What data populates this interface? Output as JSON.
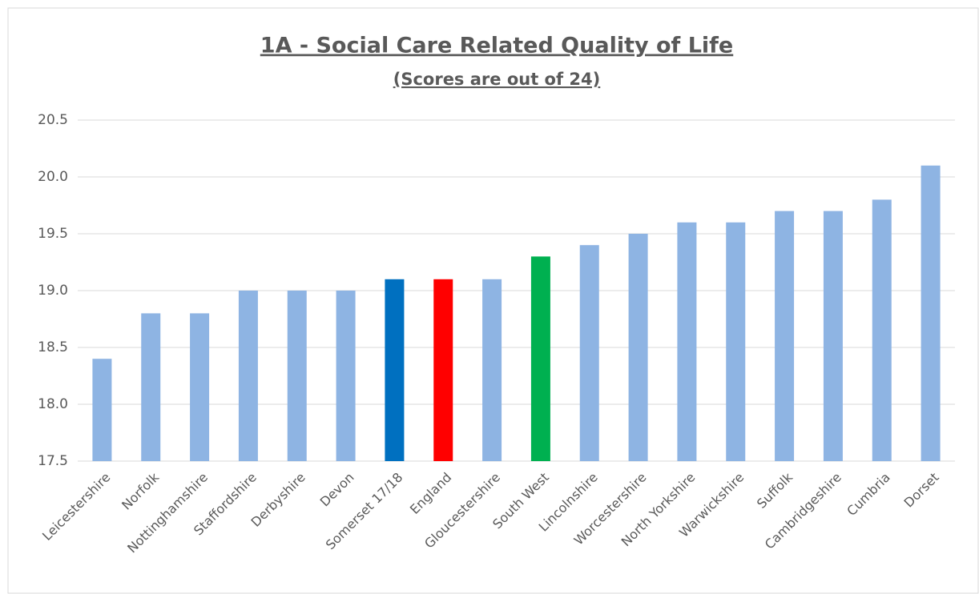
{
  "chart_data": {
    "type": "bar",
    "title": "1A - Social Care Related Quality of Life",
    "subtitle": "(Scores are out of 24)",
    "categories": [
      "Leicestershire",
      "Norfolk",
      "Nottinghamshire",
      "Staffordshire",
      "Derbyshire",
      "Devon",
      "Somerset 17/18",
      "England",
      "Gloucestershire",
      "South West",
      "Lincolnshire",
      "Worcestershire",
      "North Yorkshire",
      "Warwickshire",
      "Suffolk",
      "Cambridgeshire",
      "Cumbria",
      "Dorset"
    ],
    "values": [
      18.4,
      18.8,
      18.8,
      19.0,
      19.0,
      19.0,
      19.1,
      19.1,
      19.1,
      19.3,
      19.4,
      19.5,
      19.6,
      19.6,
      19.7,
      19.7,
      19.8,
      20.1
    ],
    "colors": [
      "#8eb4e3",
      "#8eb4e3",
      "#8eb4e3",
      "#8eb4e3",
      "#8eb4e3",
      "#8eb4e3",
      "#0070c0",
      "#ff0000",
      "#8eb4e3",
      "#00b050",
      "#8eb4e3",
      "#8eb4e3",
      "#8eb4e3",
      "#8eb4e3",
      "#8eb4e3",
      "#8eb4e3",
      "#8eb4e3",
      "#8eb4e3"
    ],
    "ylim": [
      17.5,
      20.5
    ],
    "yticks": [
      17.5,
      {
        "value": 18,
        "label": "18.0"
      },
      18.5,
      {
        "value": 19,
        "label": "19.0"
      },
      19.5,
      {
        "value": 20,
        "label": "20.0"
      },
      20.5
    ],
    "grid": true
  }
}
